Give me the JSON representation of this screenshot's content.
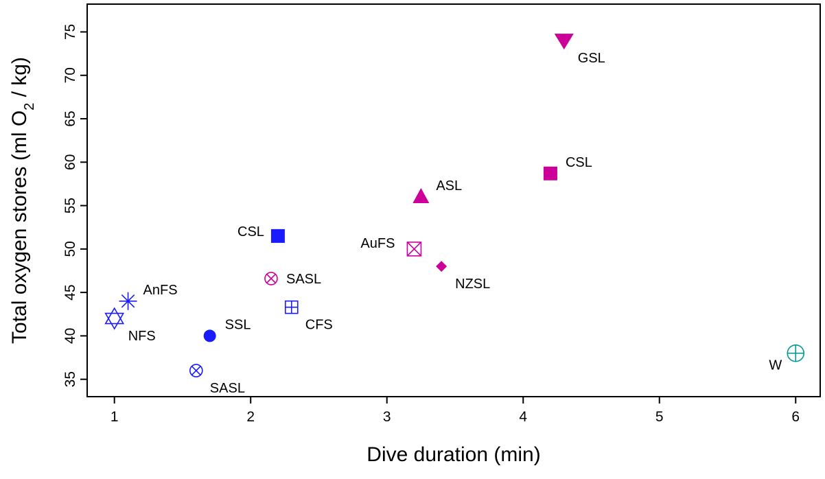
{
  "chart_data": {
    "type": "scatter",
    "xlabel": "Dive duration (min)",
    "ylabel_parts": [
      "Total oxygen stores (ml O",
      "2",
      " / kg)"
    ],
    "xlim": [
      0.8,
      6.18
    ],
    "ylim": [
      33.0,
      78.2
    ],
    "xticks": [
      1,
      2,
      3,
      4,
      5,
      6
    ],
    "yticks": [
      35,
      40,
      45,
      50,
      55,
      60,
      65,
      70,
      75
    ],
    "grid": false,
    "legend": "none",
    "colors": {
      "blue": "#1a1aff",
      "magenta": "#cc0099",
      "teal": "#009999"
    },
    "points": [
      {
        "label": "NFS",
        "x": 1.0,
        "y": 42.0,
        "marker": "star-of-david",
        "color": "blue",
        "label_pos": "below-right"
      },
      {
        "label": "AnFS",
        "x": 1.1,
        "y": 44.0,
        "marker": "asterisk",
        "color": "blue",
        "label_pos": "upper-right"
      },
      {
        "label": "SASL",
        "x": 1.6,
        "y": 36.0,
        "marker": "circle-x",
        "color": "blue",
        "label_pos": "below-right"
      },
      {
        "label": "SSL",
        "x": 1.7,
        "y": 40.0,
        "marker": "filled-circle",
        "color": "blue",
        "label_pos": "upper-right"
      },
      {
        "label": "CSL",
        "x": 2.2,
        "y": 51.5,
        "marker": "filled-square",
        "color": "blue",
        "label_pos": "left"
      },
      {
        "label": "SASL",
        "x": 2.15,
        "y": 46.6,
        "marker": "circle-x",
        "color": "magenta",
        "label_pos": "right"
      },
      {
        "label": "CFS",
        "x": 2.3,
        "y": 43.3,
        "marker": "square-plus",
        "color": "blue",
        "label_pos": "below-right"
      },
      {
        "label": "AuFS",
        "x": 3.2,
        "y": 50.0,
        "marker": "square-x",
        "color": "magenta",
        "label_pos": "upper-left"
      },
      {
        "label": "ASL",
        "x": 3.25,
        "y": 56.0,
        "marker": "filled-triangle-up",
        "color": "magenta",
        "label_pos": "upper-right"
      },
      {
        "label": "NZSL",
        "x": 3.4,
        "y": 48.0,
        "marker": "filled-diamond",
        "color": "magenta",
        "label_pos": "below-right"
      },
      {
        "label": "CSL",
        "x": 4.2,
        "y": 58.7,
        "marker": "filled-square",
        "color": "magenta",
        "label_pos": "upper-right"
      },
      {
        "label": "GSL",
        "x": 4.3,
        "y": 74.0,
        "marker": "filled-triangle-down",
        "color": "magenta",
        "label_pos": "below-right"
      },
      {
        "label": "W",
        "x": 6.0,
        "y": 38.0,
        "marker": "circle-plus",
        "color": "teal",
        "label_pos": "below-left"
      }
    ]
  }
}
